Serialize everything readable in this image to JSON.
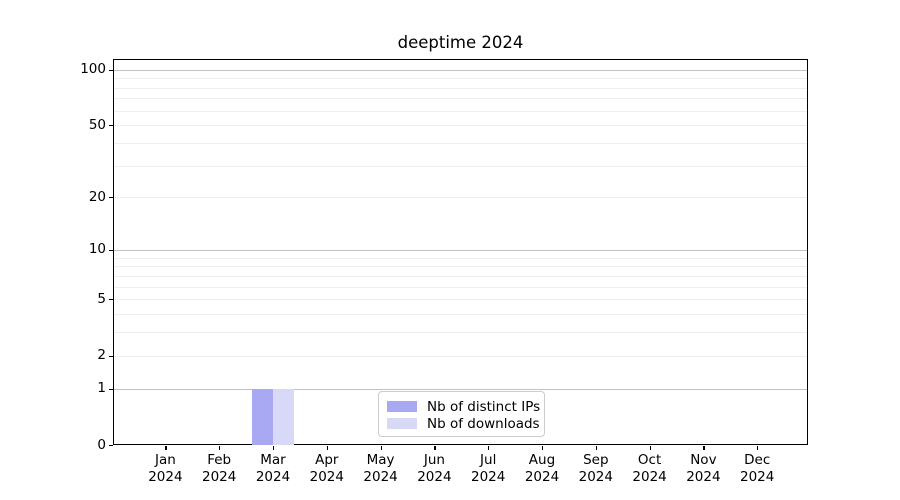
{
  "title": "deeptime 2024",
  "chart_data": {
    "type": "bar",
    "title": "deeptime 2024",
    "x_months": [
      "Jan",
      "Feb",
      "Mar",
      "Apr",
      "May",
      "Jun",
      "Jul",
      "Aug",
      "Sep",
      "Oct",
      "Nov",
      "Dec"
    ],
    "x_year": "2024",
    "series": [
      {
        "name": "Nb of distinct IPs",
        "color": "#a9a9f3",
        "values": [
          0,
          0,
          1,
          0,
          0,
          0,
          0,
          0,
          0,
          0,
          0,
          0
        ]
      },
      {
        "name": "Nb of downloads",
        "color": "#d8d8f7",
        "values": [
          0,
          0,
          1,
          0,
          0,
          0,
          0,
          0,
          0,
          0,
          0,
          0
        ]
      }
    ],
    "yscale": "log1p",
    "ylim": [
      0,
      114
    ],
    "yticks": [
      0,
      1,
      2,
      5,
      10,
      20,
      50,
      100
    ],
    "grid_major": [
      1,
      10,
      100
    ],
    "grid_minor": [
      2,
      3,
      4,
      5,
      6,
      7,
      8,
      9,
      20,
      30,
      40,
      50,
      60,
      70,
      80,
      90
    ],
    "legend_position": "lower center",
    "colors": {
      "grid_major": "#c2c2c2",
      "grid_minor": "#eeeeee",
      "spine": "#000000",
      "text": "#000000",
      "legend_border": "#cccccc",
      "legend_bg": "#ffffff"
    }
  }
}
